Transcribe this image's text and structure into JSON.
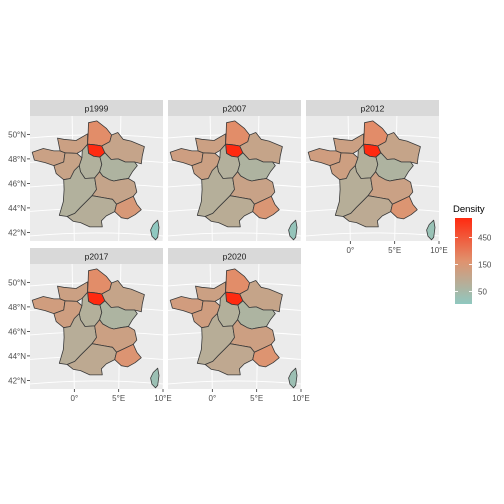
{
  "chart_data": {
    "type": "choropleth-facet",
    "panels": [
      {
        "label": "p1999"
      },
      {
        "label": "p2007"
      },
      {
        "label": "p2012"
      },
      {
        "label": "p2017"
      },
      {
        "label": "p2020"
      }
    ],
    "y_ticks": [
      {
        "label": "50°N",
        "value": 50
      },
      {
        "label": "48°N",
        "value": 48
      },
      {
        "label": "46°N",
        "value": 46
      },
      {
        "label": "44°N",
        "value": 44
      },
      {
        "label": "42°N",
        "value": 42
      }
    ],
    "x_ticks": [
      {
        "label": "0°",
        "value": 0
      },
      {
        "label": "5°E",
        "value": 5
      },
      {
        "label": "10°E",
        "value": 10
      }
    ],
    "lon_range": [
      -5,
      10
    ],
    "lat_range": [
      41.3,
      51.5
    ],
    "legend": {
      "title": "Density",
      "scale": "log",
      "ticks": [
        450,
        150,
        50
      ],
      "range": [
        30,
        1000
      ],
      "colors": [
        "#8fc8c0",
        "#e0926e",
        "#ff2a10"
      ]
    },
    "region_density": {
      "idf": [
        980,
        1000,
        1010,
        1015,
        1020
      ],
      "hdf": [
        190,
        190,
        191,
        190,
        190
      ],
      "gest": [
        96,
        97,
        97,
        97,
        97
      ],
      "bfc": [
        59,
        59,
        59,
        58,
        58
      ],
      "nor": [
        110,
        111,
        111,
        111,
        110
      ],
      "bre": [
        107,
        116,
        120,
        123,
        124
      ],
      "pdl": [
        101,
        110,
        115,
        118,
        120
      ],
      "cvl": [
        63,
        65,
        66,
        66,
        66
      ],
      "naq": [
        64,
        68,
        70,
        71,
        72
      ],
      "ara": [
        95,
        102,
        107,
        110,
        113
      ],
      "occ": [
        69,
        75,
        79,
        82,
        84
      ],
      "paca": [
        144,
        153,
        158,
        160,
        162
      ],
      "cor": [
        30,
        34,
        37,
        39,
        40
      ]
    }
  }
}
